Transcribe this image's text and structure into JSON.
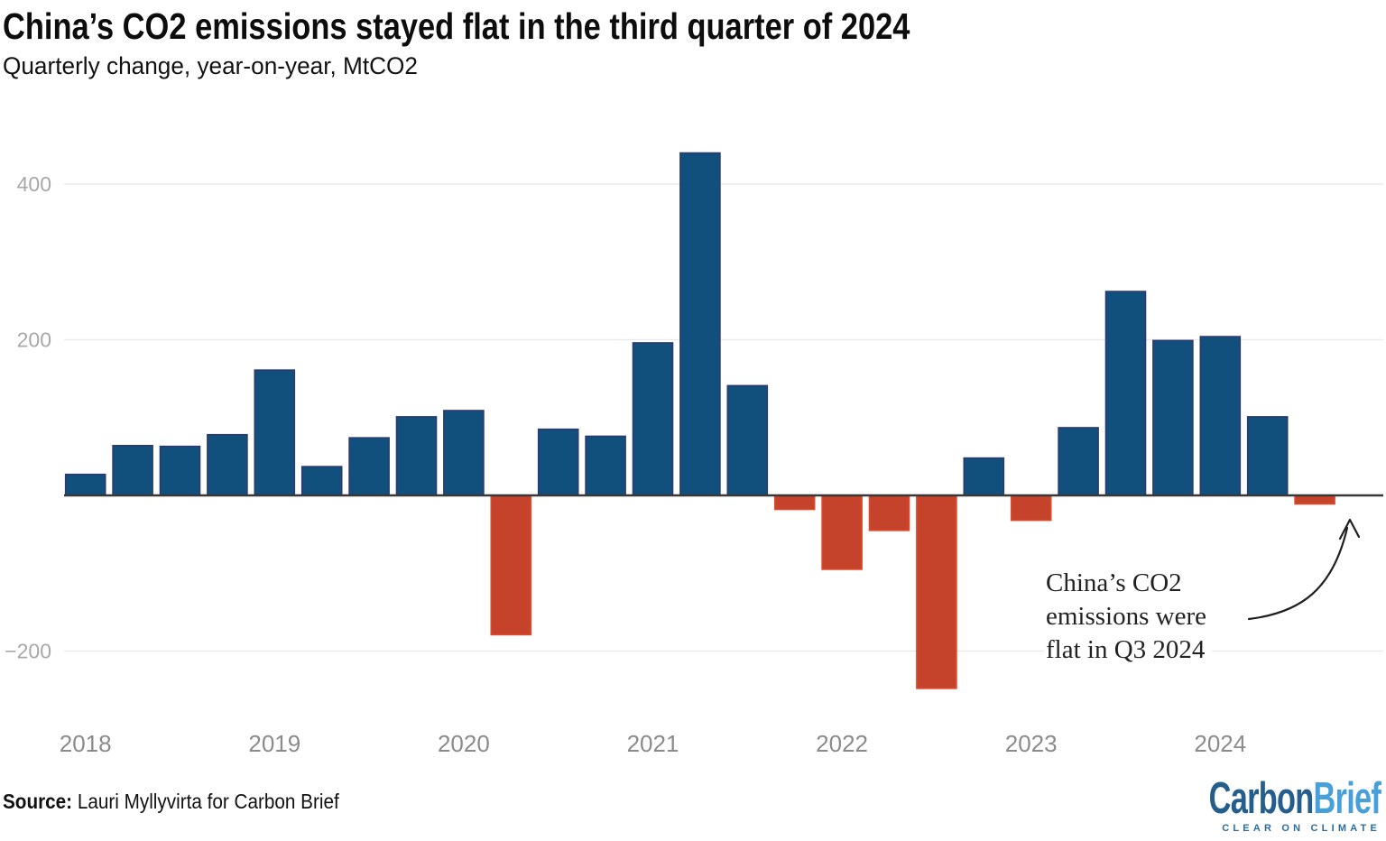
{
  "chart_data": {
    "type": "bar",
    "title": "China’s CO2 emissions stayed flat in the third quarter of 2024",
    "subtitle": "Quarterly change, year-on-year, MtCO2",
    "unit": "MtCO2",
    "categories": [
      "2018 Q1",
      "2018 Q2",
      "2018 Q3",
      "2018 Q4",
      "2019 Q1",
      "2019 Q2",
      "2019 Q3",
      "2019 Q4",
      "2020 Q1",
      "2020 Q2",
      "2020 Q3",
      "2020 Q4",
      "2021 Q1",
      "2021 Q2",
      "2021 Q3",
      "2021 Q4",
      "2022 Q1",
      "2022 Q2",
      "2022 Q3",
      "2022 Q4",
      "2023 Q1",
      "2023 Q2",
      "2023 Q3",
      "2023 Q4",
      "2024 Q1",
      "2024 Q2",
      "2024 Q3"
    ],
    "values": [
      27,
      64,
      63,
      78,
      161,
      37,
      74,
      101,
      109,
      -179,
      85,
      76,
      196,
      440,
      141,
      -18,
      -95,
      -45,
      -248,
      48,
      -32,
      87,
      262,
      199,
      204,
      101,
      -11
    ],
    "y_ticks": [
      {
        "value": 400,
        "label": "400"
      },
      {
        "value": 200,
        "label": "200"
      },
      {
        "value": -200,
        "label": "−200"
      }
    ],
    "x_ticks": [
      {
        "label": "2018",
        "slot": 0
      },
      {
        "label": "2019",
        "slot": 4
      },
      {
        "label": "2020",
        "slot": 8
      },
      {
        "label": "2021",
        "slot": 12
      },
      {
        "label": "2022",
        "slot": 16
      },
      {
        "label": "2023",
        "slot": 20
      },
      {
        "label": "2024",
        "slot": 24
      }
    ],
    "ylim": [
      -280,
      460
    ],
    "grid": "horizontal-light",
    "legend": "none",
    "colors": {
      "positive": "#114f7c",
      "positive_stroke": "#2e3a6e",
      "negative": "#c5432a",
      "negative_stroke": "#de4a2c",
      "gridline": "#eaeaea",
      "baseline": "#383838",
      "y_tick_text": "#a8a8a8",
      "x_tick_text": "#8b8b8b"
    }
  },
  "annotation": {
    "lines": [
      "China’s CO2",
      "emissions were",
      "flat in Q3 2024"
    ]
  },
  "footer": {
    "source_label": "Source:",
    "source_text": " Lauri Myllyvirta for Carbon Brief"
  },
  "logo": {
    "part1": "Carbon",
    "part2": "Brief",
    "tagline": "CLEAR ON CLIMATE",
    "color1": "#235e8e",
    "color2": "#47a0d9",
    "tagline_color": "#2a6ca0"
  }
}
